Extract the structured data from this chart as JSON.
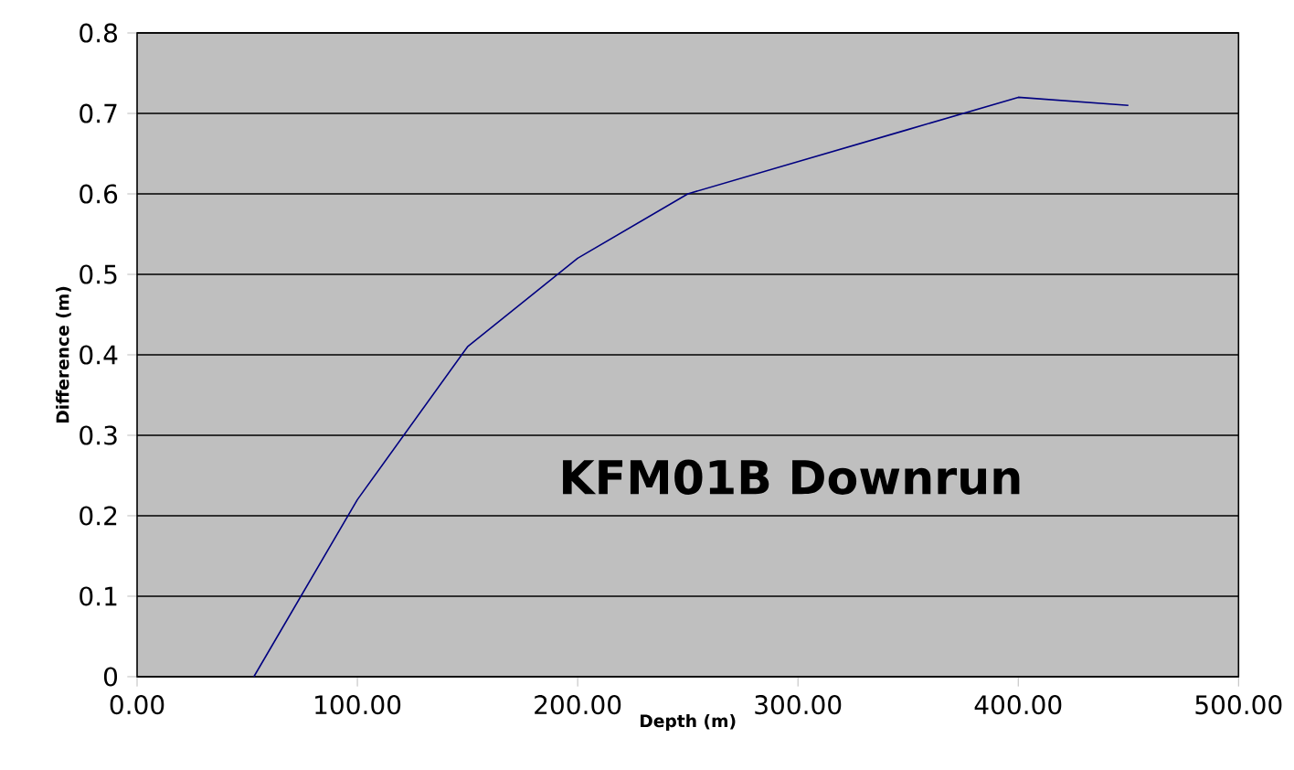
{
  "chart_data": {
    "type": "line",
    "xlabel": "Depth (m)",
    "ylabel": "Difference (m)",
    "annotations": [
      "KFM01B Downrun"
    ],
    "x": [
      53,
      100,
      150,
      200,
      250,
      300,
      350,
      400,
      450
    ],
    "series": [
      {
        "color": "#000080",
        "values": [
          0,
          0.22,
          0.41,
          0.52,
          0.6,
          0.64,
          0.68,
          0.72,
          0.71
        ]
      }
    ],
    "xlim": [
      0,
      500
    ],
    "ylim": [
      0,
      0.8
    ],
    "xticks": [
      {
        "value": 0,
        "label": "0.00"
      },
      {
        "value": 100,
        "label": "100.00"
      },
      {
        "value": 200,
        "label": "200.00"
      },
      {
        "value": 300,
        "label": "300.00"
      },
      {
        "value": 400,
        "label": "400.00"
      },
      {
        "value": 500,
        "label": "500.00"
      }
    ],
    "yticks": [
      0,
      0.1,
      0.2,
      0.3,
      0.4,
      0.5,
      0.6,
      0.7,
      0.8
    ],
    "grid": "y",
    "marker": "none",
    "line_style": "solid"
  }
}
